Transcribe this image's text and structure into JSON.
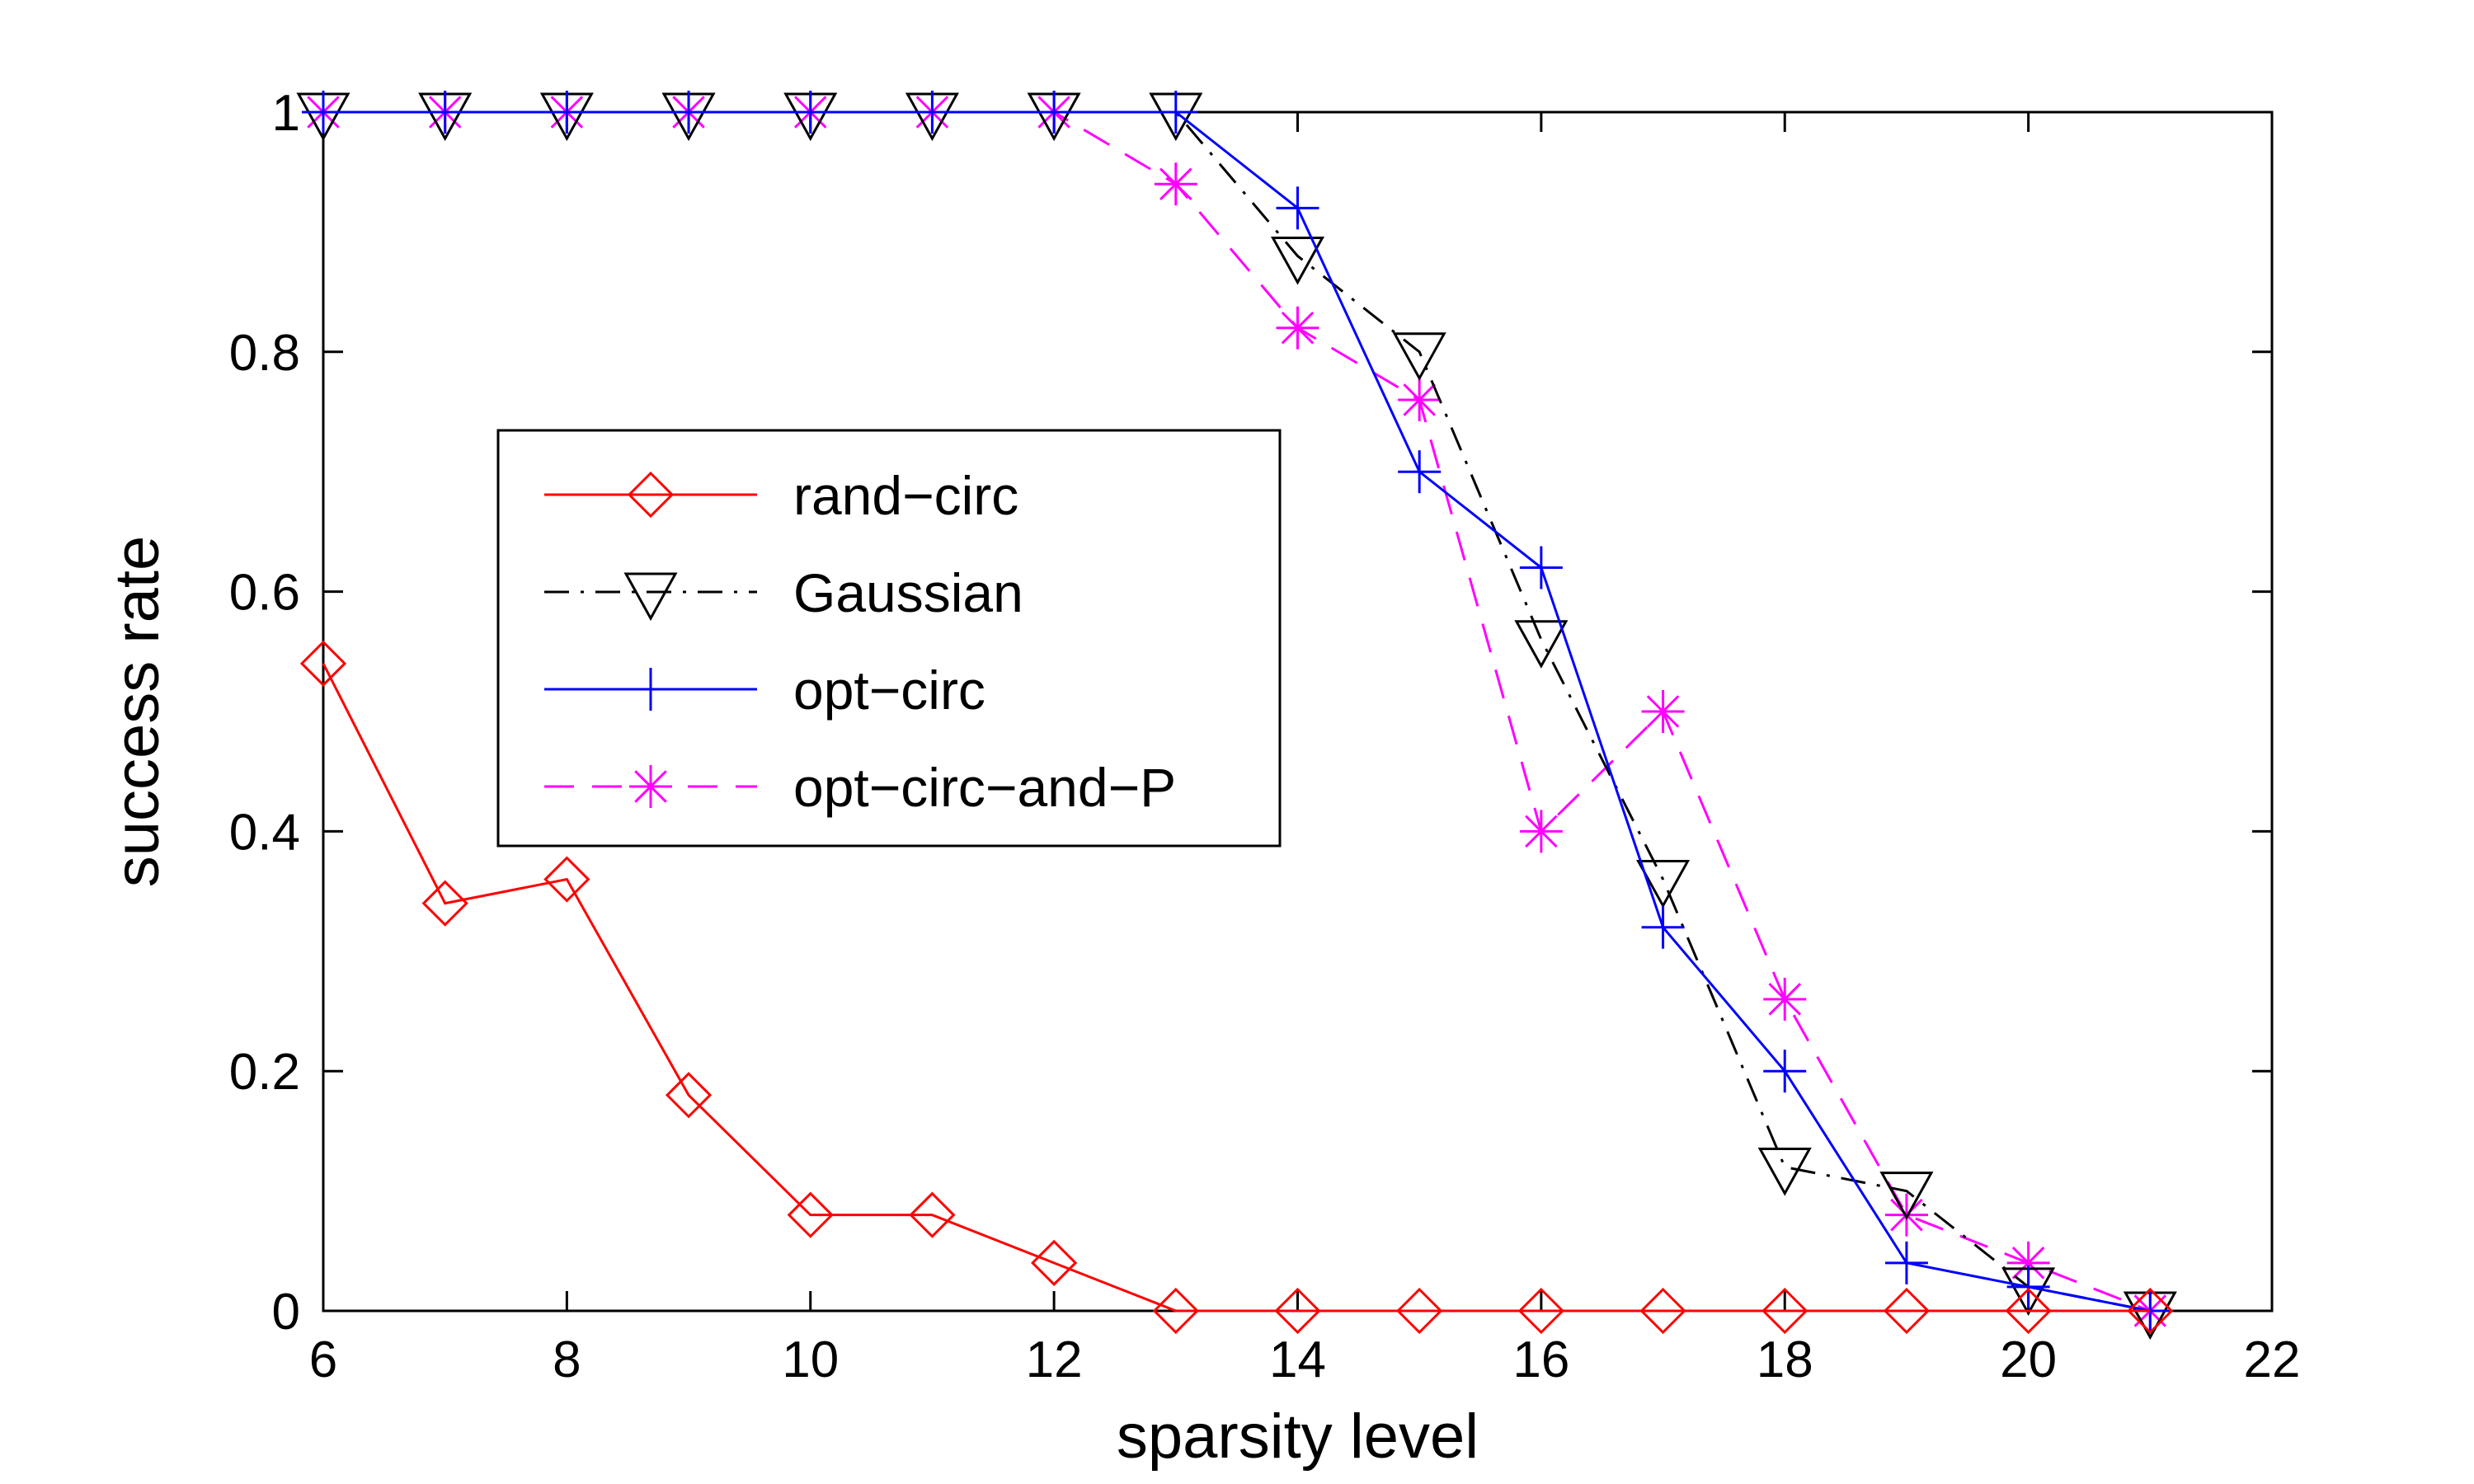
{
  "chart_data": {
    "type": "line",
    "title": "",
    "xlabel": "sparsity level",
    "ylabel": "success rate",
    "xlim": [
      6,
      22
    ],
    "ylim": [
      0,
      1
    ],
    "xticks": [
      6,
      8,
      10,
      12,
      14,
      16,
      18,
      20,
      22
    ],
    "yticks": [
      0,
      0.2,
      0.4,
      0.6,
      0.8,
      1
    ],
    "grid": false,
    "legend_position": "center-left",
    "x": [
      6,
      7,
      8,
      9,
      10,
      11,
      12,
      13,
      14,
      15,
      16,
      17,
      18,
      19,
      20,
      21
    ],
    "series": [
      {
        "name": "rand−circ",
        "color": "#ff0000",
        "line_style": "solid",
        "marker": "diamond",
        "values": [
          0.54,
          0.34,
          0.36,
          0.18,
          0.08,
          0.08,
          0.04,
          0,
          0,
          0,
          0,
          0,
          0,
          0,
          0,
          0
        ]
      },
      {
        "name": "Gaussian",
        "color": "#000000",
        "line_style": "dash-dot",
        "marker": "triangle-down",
        "values": [
          1,
          1,
          1,
          1,
          1,
          1,
          1,
          1,
          0.88,
          0.8,
          0.56,
          0.36,
          0.12,
          0.1,
          0.02,
          0
        ]
      },
      {
        "name": "opt−circ",
        "color": "#0000ff",
        "line_style": "solid",
        "marker": "plus",
        "values": [
          1,
          1,
          1,
          1,
          1,
          1,
          1,
          1,
          0.92,
          0.7,
          0.62,
          0.32,
          0.2,
          0.04,
          0.02,
          0
        ]
      },
      {
        "name": "opt−circ−and−P",
        "color": "#ff00ff",
        "line_style": "dashed",
        "marker": "asterisk",
        "values": [
          1,
          1,
          1,
          1,
          1,
          1,
          1,
          0.94,
          0.82,
          0.76,
          0.4,
          0.5,
          0.26,
          0.08,
          0.04,
          0
        ]
      }
    ]
  }
}
